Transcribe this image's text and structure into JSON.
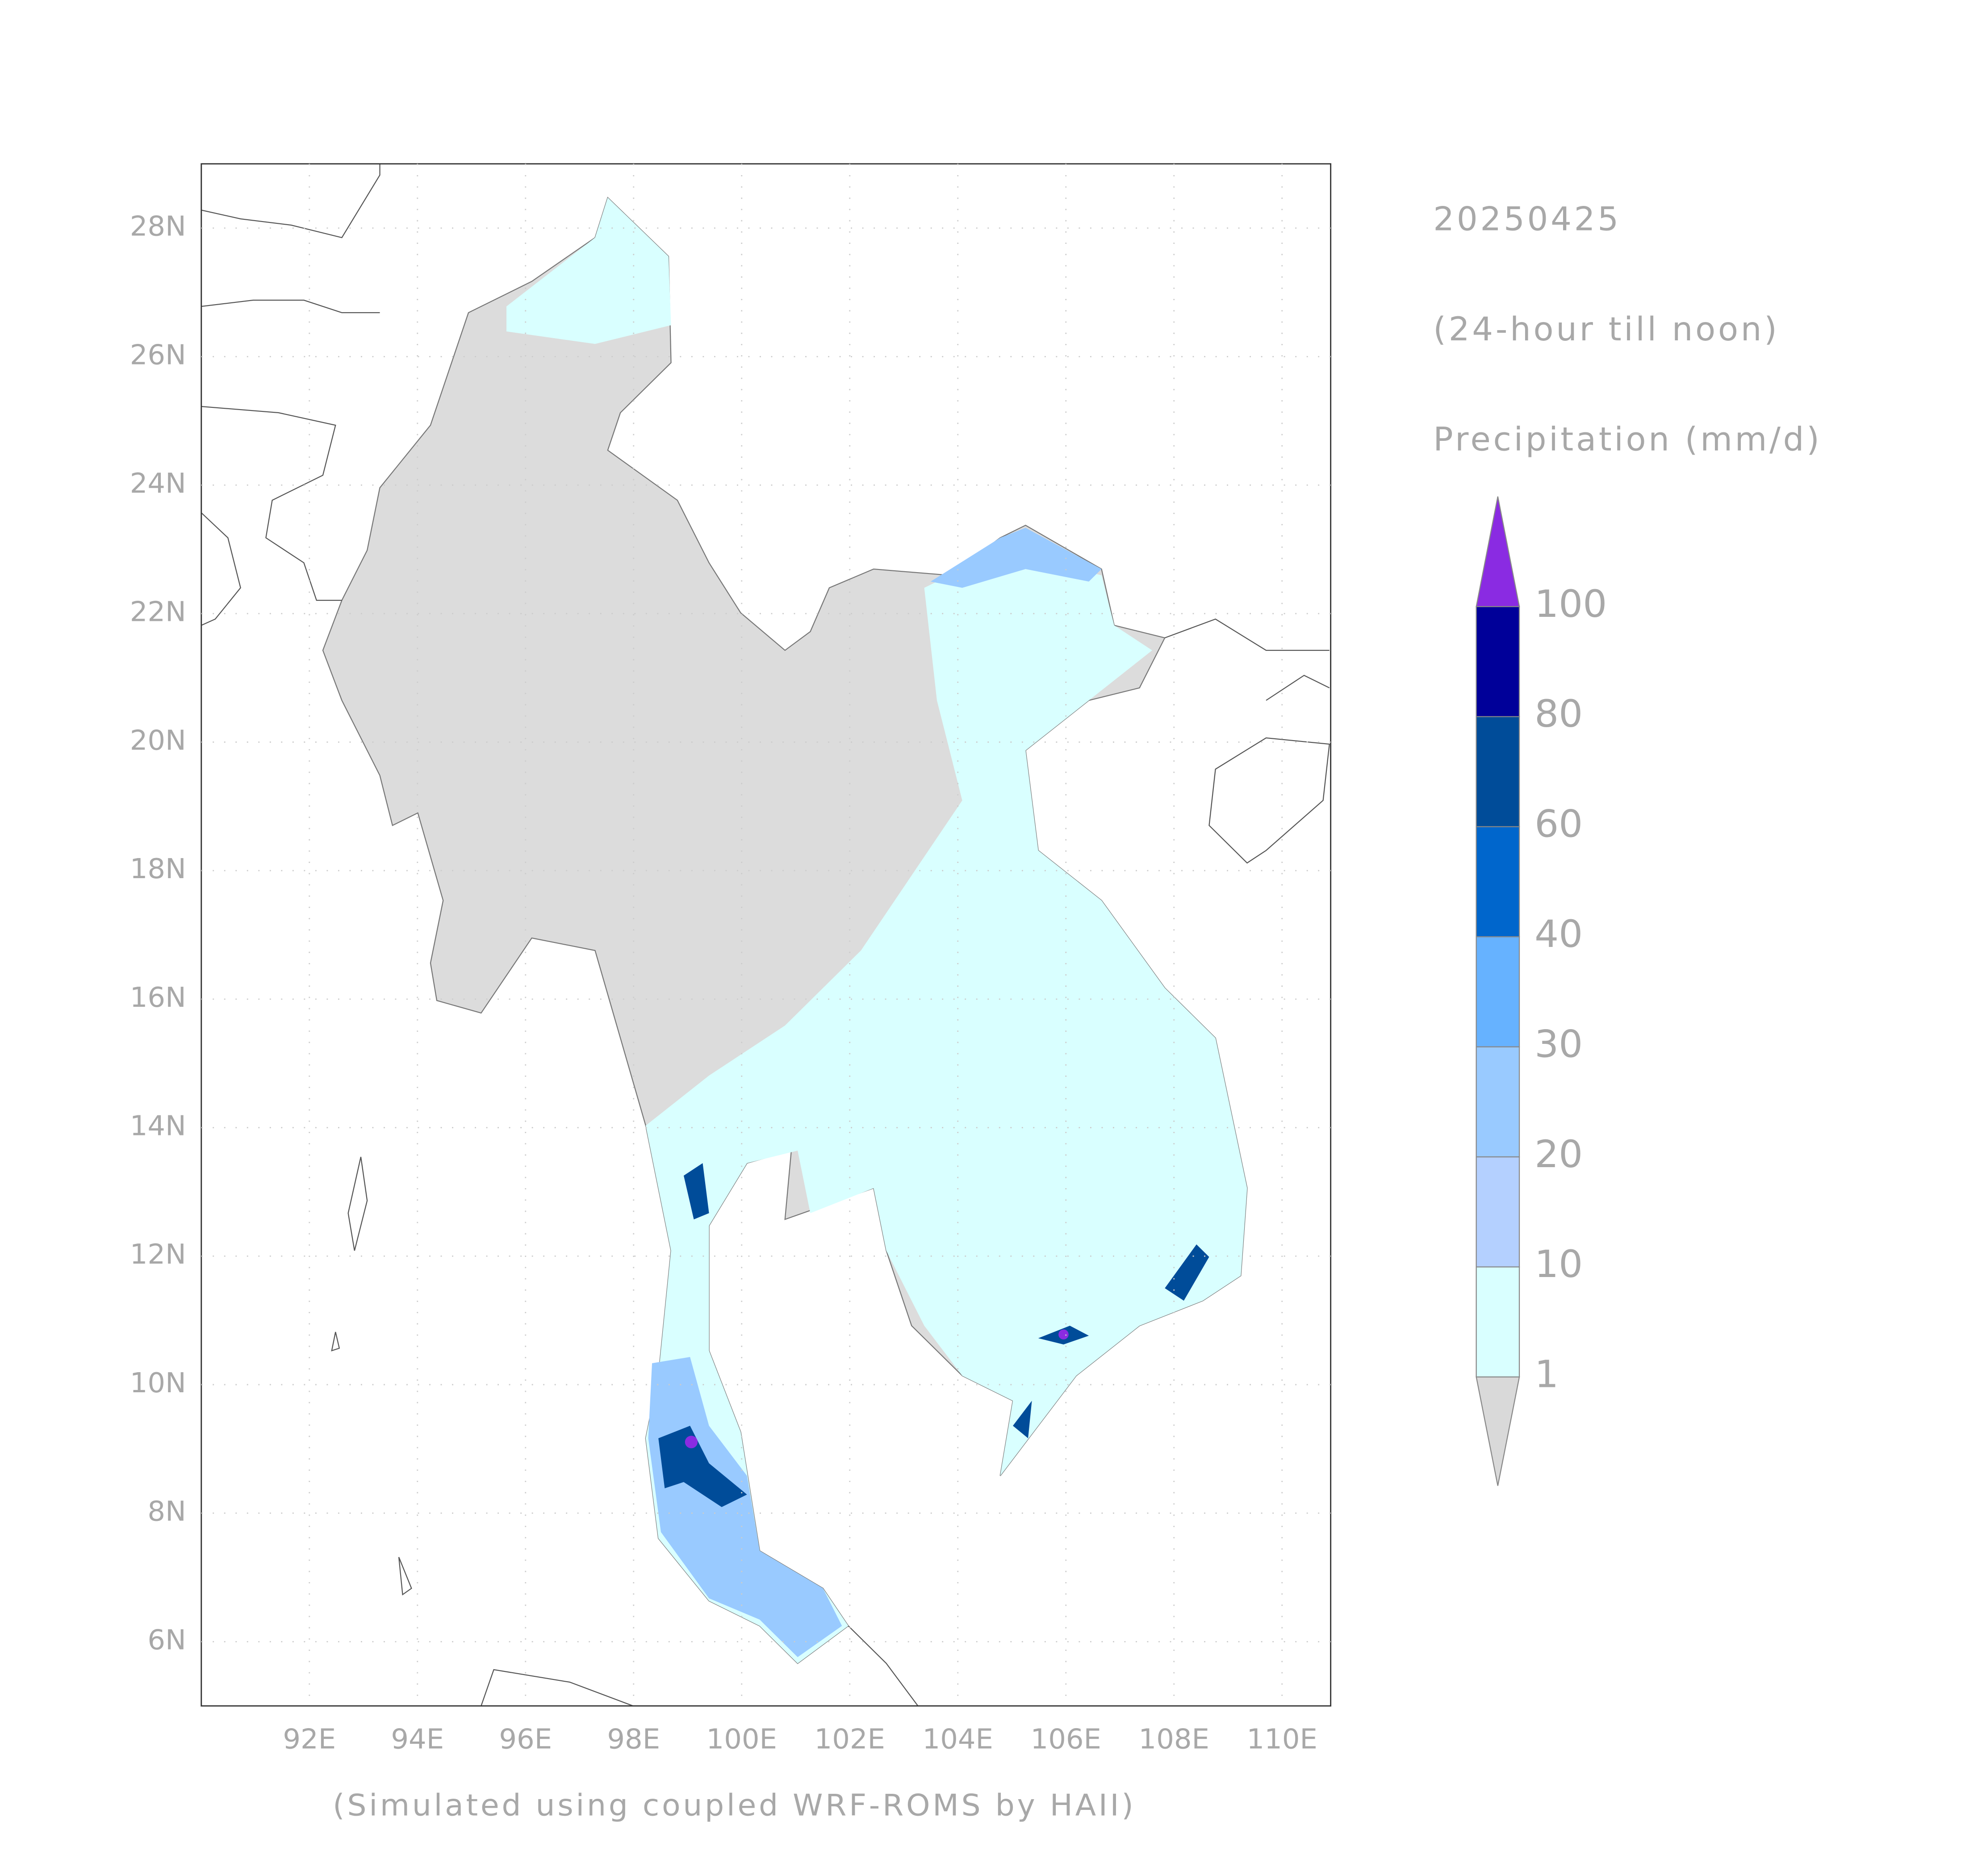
{
  "chart_data": {
    "type": "map",
    "title": "20250425",
    "subtitle": "(24-hour till noon)",
    "variable": "Precipitation (mm/d)",
    "credit": "(Simulated using coupled WRF-ROMS by HAII)",
    "xlim": [
      90,
      110.9
    ],
    "ylim": [
      5,
      29
    ],
    "xticks": [
      {
        "value": 92,
        "label": "92E"
      },
      {
        "value": 94,
        "label": "94E"
      },
      {
        "value": 96,
        "label": "96E"
      },
      {
        "value": 98,
        "label": "98E"
      },
      {
        "value": 100,
        "label": "100E"
      },
      {
        "value": 102,
        "label": "102E"
      },
      {
        "value": 104,
        "label": "104E"
      },
      {
        "value": 106,
        "label": "106E"
      },
      {
        "value": 108,
        "label": "108E"
      },
      {
        "value": 110,
        "label": "110E"
      }
    ],
    "yticks": [
      {
        "value": 6,
        "label": "6N"
      },
      {
        "value": 8,
        "label": "8N"
      },
      {
        "value": 10,
        "label": "10N"
      },
      {
        "value": 12,
        "label": "12N"
      },
      {
        "value": 14,
        "label": "14N"
      },
      {
        "value": 16,
        "label": "16N"
      },
      {
        "value": 18,
        "label": "18N"
      },
      {
        "value": 20,
        "label": "20N"
      },
      {
        "value": 22,
        "label": "22N"
      },
      {
        "value": 24,
        "label": "24N"
      },
      {
        "value": 26,
        "label": "26N"
      },
      {
        "value": 28,
        "label": "28N"
      }
    ],
    "grid": true,
    "colorbar": {
      "levels": [
        1,
        10,
        20,
        30,
        40,
        60,
        80,
        100
      ],
      "under_color": "#d9d9d9",
      "colors": [
        "#d9ffff",
        "#b4d0ff",
        "#99caff",
        "#66b2ff",
        "#0066cc",
        "#004c99",
        "#000099"
      ],
      "over_color": "#8a2be2"
    }
  }
}
